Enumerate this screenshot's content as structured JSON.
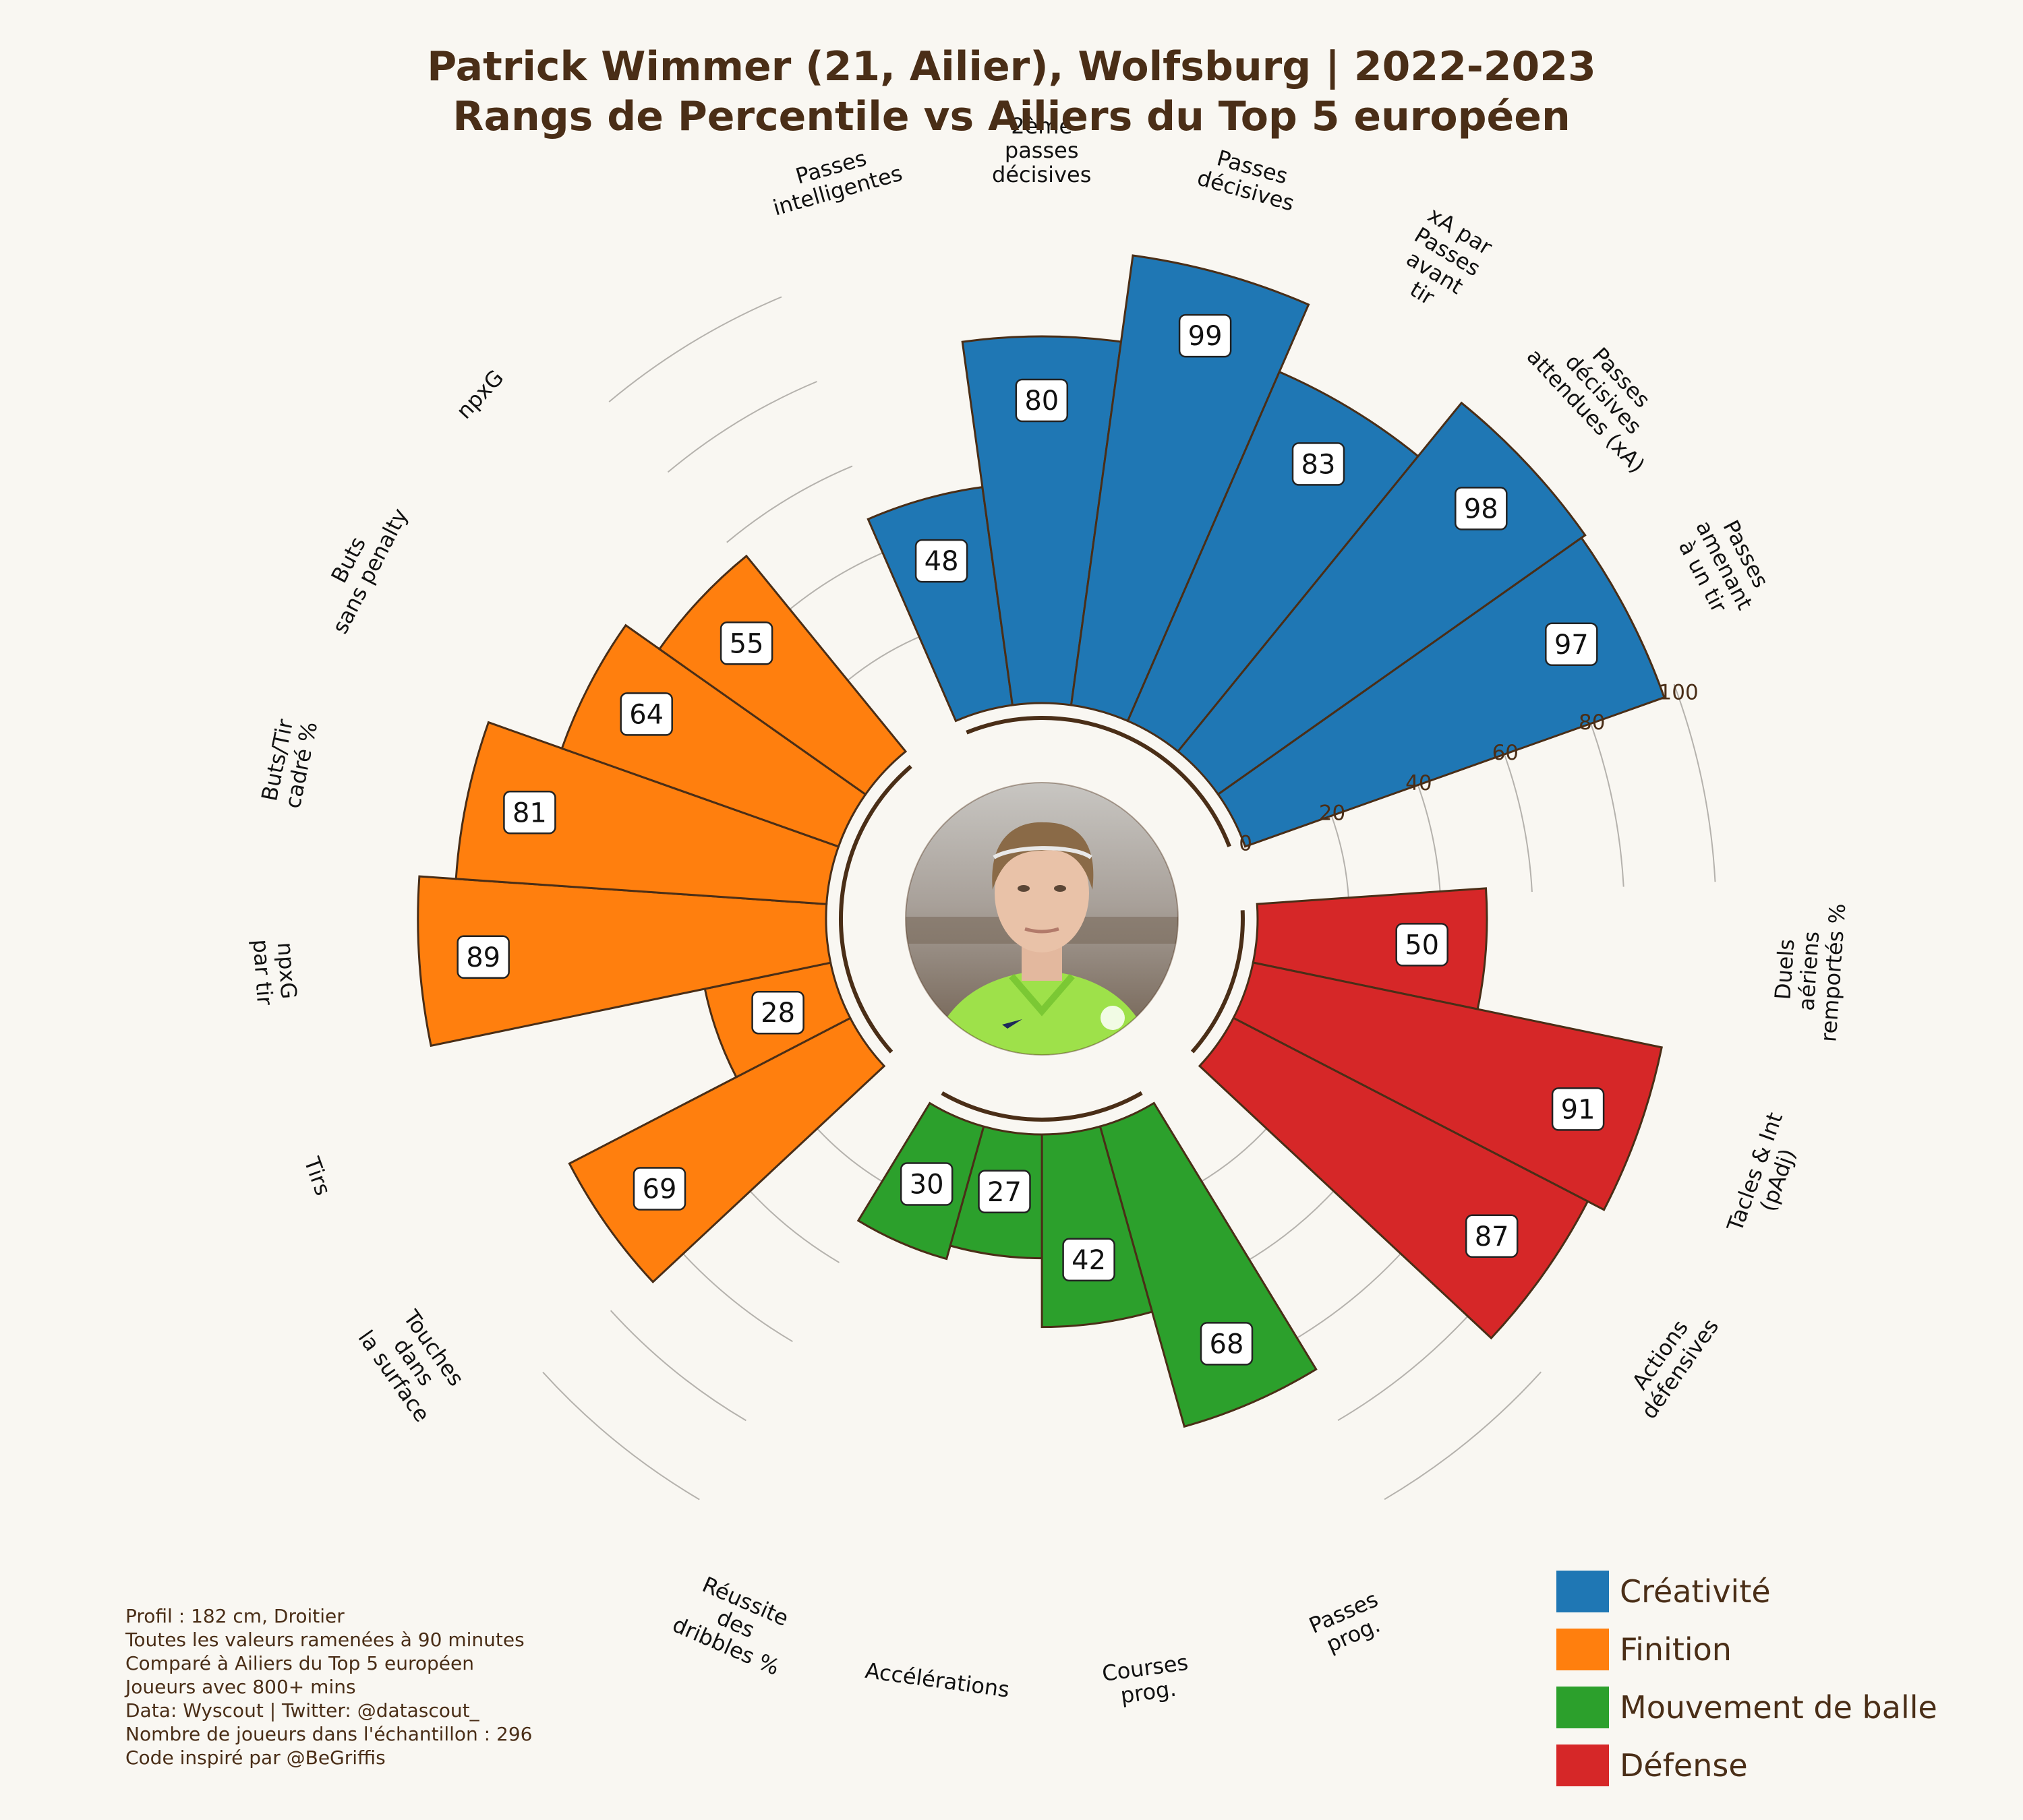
{
  "title": {
    "line1": "Patrick Wimmer (21, Ailier), Wolfsburg | 2022-2023",
    "line2": "Rangs de Percentile vs Ailiers du Top 5 européen"
  },
  "player_photo": "player-portrait",
  "footnotes": [
    "Profil : 182 cm, Droitier",
    "Toutes les valeurs ramenées à 90 minutes",
    "Comparé à Ailiers du Top 5 européen",
    "Joueurs avec 800+ mins",
    "Data: Wyscout | Twitter: @datascout_",
    "Nombre de joueurs dans l'échantillon : 296",
    "Code inspiré par @BeGriffis"
  ],
  "legend": [
    {
      "label": "Créativité",
      "color": "#1f77b4"
    },
    {
      "label": "Finition",
      "color": "#ff7f0e"
    },
    {
      "label": "Mouvement de balle",
      "color": "#2ca02c"
    },
    {
      "label": "Défense",
      "color": "#d62728"
    }
  ],
  "chart_data": {
    "type": "radial-bar",
    "title": "Patrick Wimmer (21, Ailier), Wolfsburg | 2022-2023 — Rangs de Percentile vs Ailiers du Top 5 européen",
    "rlim": [
      0,
      100
    ],
    "radial_ticks": [
      "0",
      "20",
      "40",
      "60",
      "80",
      "100"
    ],
    "legend_position": "bottom-right",
    "groups": [
      {
        "name": "Défense",
        "color": "#d62728"
      },
      {
        "name": "Mouvement de balle",
        "color": "#2ca02c"
      },
      {
        "name": "Finition",
        "color": "#ff7f0e"
      },
      {
        "name": "Créativité",
        "color": "#1f77b4"
      }
    ],
    "metrics": [
      {
        "label": "Duels\naériens\nremportés %",
        "group": "Défense",
        "value": 50
      },
      {
        "label": "Tacles & Int\n(pAdj)",
        "group": "Défense",
        "value": 91
      },
      {
        "label": "Actions\ndéfensives",
        "group": "Défense",
        "value": 87
      },
      {
        "label": "",
        "group": "",
        "value": null
      },
      {
        "label": "Passes\nprog.",
        "group": "Mouvement de balle",
        "value": 68
      },
      {
        "label": "Courses\nprog.",
        "group": "Mouvement de balle",
        "value": 42
      },
      {
        "label": "Accélérations",
        "group": "Mouvement de balle",
        "value": 27
      },
      {
        "label": "Réussite\ndes\ndribbles %",
        "group": "Mouvement de balle",
        "value": 30
      },
      {
        "label": "",
        "group": "",
        "value": null
      },
      {
        "label": "Touches\ndans\nla surface",
        "group": "Finition",
        "value": 69
      },
      {
        "label": "Tirs",
        "group": "Finition",
        "value": 28
      },
      {
        "label": "npxG\npar tir",
        "group": "Finition",
        "value": 89
      },
      {
        "label": "Buts/Tir\ncadré %",
        "group": "Finition",
        "value": 81
      },
      {
        "label": "Buts\nsans penalty",
        "group": "Finition",
        "value": 64
      },
      {
        "label": "npxG",
        "group": "Finition",
        "value": 55
      },
      {
        "label": "",
        "group": "",
        "value": null
      },
      {
        "label": "Passes\nintelligentes",
        "group": "Créativité",
        "value": 48
      },
      {
        "label": "2ème\npasses\ndécisives",
        "group": "Créativité",
        "value": 80
      },
      {
        "label": "Passes\ndécisives",
        "group": "Créativité",
        "value": 99
      },
      {
        "label": "xA par\nPasses\navant\ntir",
        "group": "Créativité",
        "value": 83
      },
      {
        "label": "Passes\ndécisives\nattendues (xA)",
        "group": "Créativité",
        "value": 98
      },
      {
        "label": "Passes\namenant\nà un tir",
        "group": "Créativité",
        "value": 97
      },
      {
        "label": "",
        "group": "",
        "value": null
      }
    ]
  }
}
